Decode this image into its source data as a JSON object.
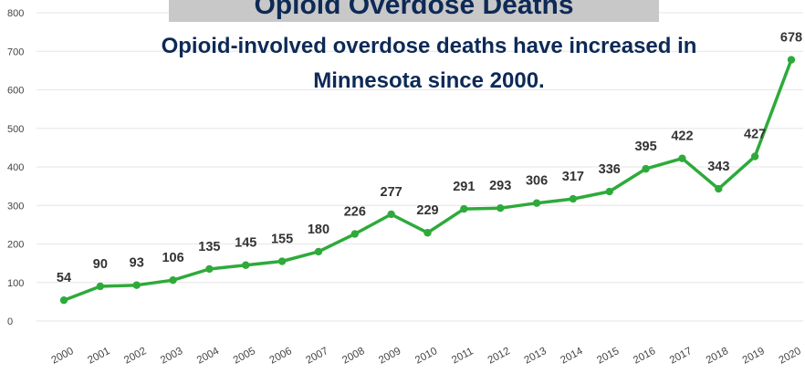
{
  "chart_data": {
    "type": "line",
    "title": "Opioid Overdose Deaths",
    "subtitle_lines": [
      "Opioid-involved overdose deaths have increased in",
      "Minnesota since 2000."
    ],
    "categories": [
      "2000",
      "2001",
      "2002",
      "2003",
      "2004",
      "2005",
      "2006",
      "2007",
      "2008",
      "2009",
      "2010",
      "2011",
      "2012",
      "2013",
      "2014",
      "2015",
      "2016",
      "2017",
      "2018",
      "2019",
      "2020"
    ],
    "series": [
      {
        "values": [
          54,
          90,
          93,
          106,
          135,
          145,
          155,
          180,
          226,
          277,
          229,
          291,
          293,
          306,
          317,
          336,
          395,
          422,
          343,
          427,
          678
        ]
      }
    ],
    "data_labels": [
      "54",
      "90",
      "93",
      "106",
      "135",
      "145",
      "155",
      "180",
      "226",
      "277",
      "229",
      "291",
      "293",
      "306",
      "317",
      "336",
      "395",
      "422",
      "343",
      "427",
      "678"
    ],
    "yticks": [
      "0",
      "100",
      "200",
      "300",
      "400",
      "500",
      "600",
      "700",
      "800"
    ],
    "ylim": [
      0,
      800
    ],
    "grid": true,
    "line_color": "#2eaa3a"
  }
}
